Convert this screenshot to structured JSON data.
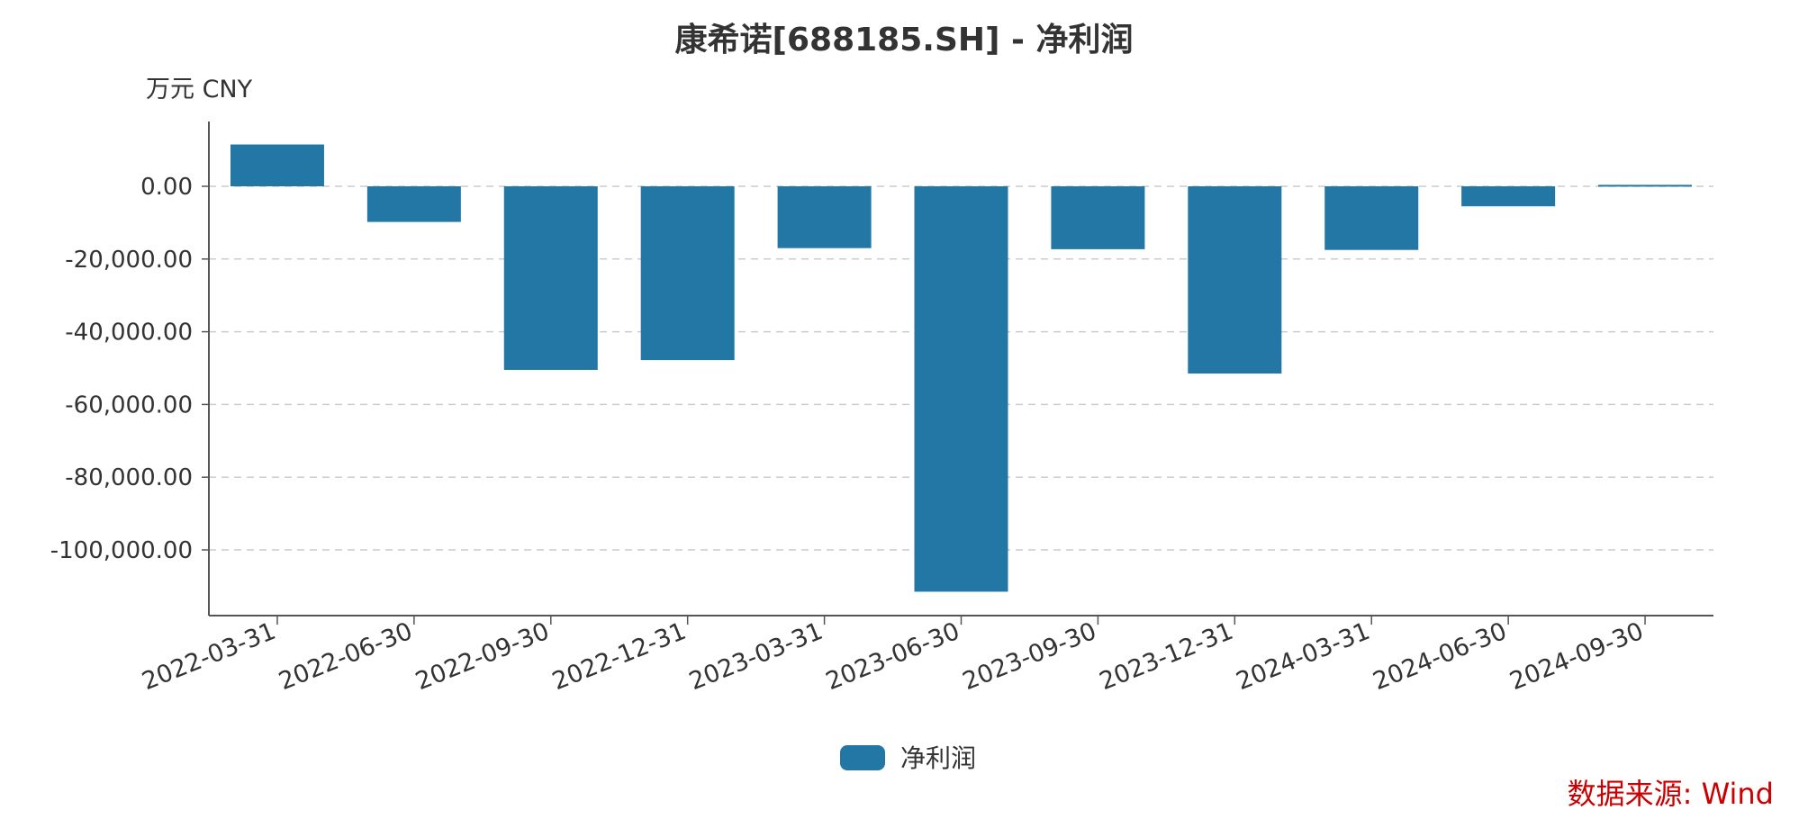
{
  "chart_data": {
    "type": "bar",
    "title": "康希诺[688185.SH] - 净利润",
    "unit_label": "万元  CNY",
    "categories": [
      "2022-03-31",
      "2022-06-30",
      "2022-09-30",
      "2022-12-31",
      "2023-03-31",
      "2023-06-30",
      "2023-09-30",
      "2023-12-31",
      "2024-03-31",
      "2024-06-30",
      "2024-09-30"
    ],
    "series": [
      {
        "name": "净利润",
        "color": "#2377a4",
        "values": [
          11500,
          -9800,
          -50500,
          -47800,
          -17000,
          -111500,
          -17300,
          -51500,
          -17500,
          -5500,
          400
        ]
      }
    ],
    "y_ticks": [
      0,
      -20000,
      -40000,
      -60000,
      -80000,
      -100000
    ],
    "y_tick_labels": [
      "0.00",
      "-20,000.00",
      "-40,000.00",
      "-60,000.00",
      "-80,000.00",
      "-100,000.00"
    ],
    "ylim": [
      -118000,
      18000
    ],
    "grid": true,
    "legend_position": "bottom-center",
    "source_text": "数据来源: Wind",
    "source_color": "#cc0000"
  }
}
